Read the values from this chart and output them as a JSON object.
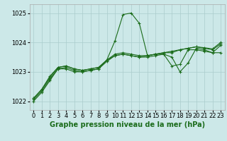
{
  "background_color": "#cce8e8",
  "grid_color": "#aacccc",
  "line_color": "#1a6b1a",
  "title": "Graphe pression niveau de la mer (hPa)",
  "title_fontsize": 7,
  "tick_fontsize": 6,
  "xlim": [
    -0.5,
    23.5
  ],
  "ylim": [
    1021.7,
    1025.3
  ],
  "yticks": [
    1022,
    1023,
    1024,
    1025
  ],
  "xticks": [
    0,
    1,
    2,
    3,
    4,
    5,
    6,
    7,
    8,
    9,
    10,
    11,
    12,
    13,
    14,
    15,
    16,
    17,
    18,
    19,
    20,
    21,
    22,
    23
  ],
  "series": [
    [
      1022.0,
      1022.3,
      1022.7,
      1023.1,
      1023.1,
      1023.0,
      1023.0,
      1023.05,
      1023.1,
      1023.4,
      1024.05,
      1024.95,
      1025.0,
      1024.65,
      1023.55,
      1023.6,
      1023.6,
      1023.5,
      1023.0,
      1023.3,
      1023.8,
      1023.75,
      1023.65,
      1023.9
    ],
    [
      1022.05,
      1022.35,
      1022.75,
      1023.1,
      1023.15,
      1023.05,
      1023.0,
      1023.05,
      1023.1,
      1023.35,
      1023.55,
      1023.6,
      1023.55,
      1023.5,
      1023.5,
      1023.55,
      1023.6,
      1023.2,
      1023.25,
      1023.75,
      1023.75,
      1023.7,
      1023.65,
      1023.65
    ],
    [
      1022.1,
      1022.4,
      1022.8,
      1023.15,
      1023.2,
      1023.1,
      1023.05,
      1023.1,
      1023.15,
      1023.4,
      1023.6,
      1023.65,
      1023.6,
      1023.55,
      1023.55,
      1023.6,
      1023.65,
      1023.65,
      1023.75,
      1023.8,
      1023.85,
      1023.8,
      1023.75,
      1023.95
    ],
    [
      1022.1,
      1022.4,
      1022.85,
      1023.15,
      1023.2,
      1023.1,
      1023.05,
      1023.1,
      1023.15,
      1023.4,
      1023.55,
      1023.6,
      1023.55,
      1023.5,
      1023.55,
      1023.6,
      1023.65,
      1023.7,
      1023.75,
      1023.8,
      1023.85,
      1023.82,
      1023.78,
      1024.0
    ]
  ]
}
